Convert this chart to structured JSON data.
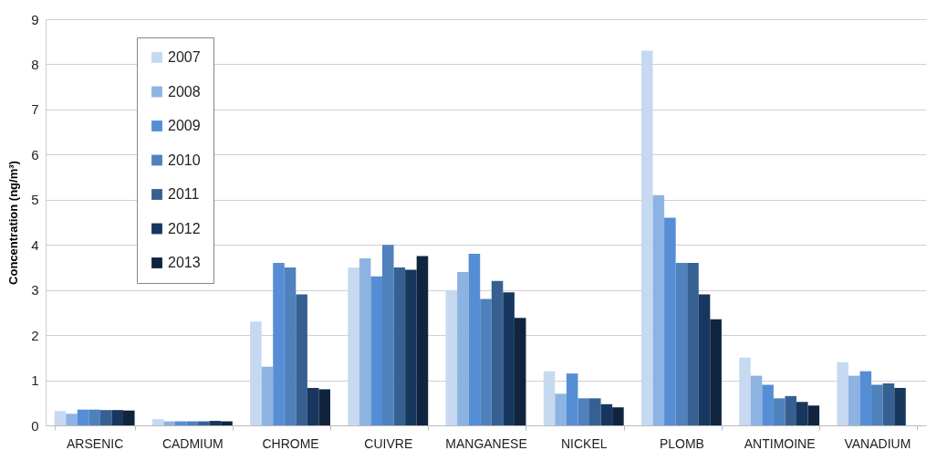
{
  "chart_data": {
    "type": "bar",
    "ylabel": "Concentration (ng/m³)",
    "categories": [
      "ARSENIC",
      "CADMIUM",
      "CHROME",
      "CUIVRE",
      "MANGANESE",
      "NICKEL",
      "PLOMB",
      "ANTIMOINE",
      "VANADIUM"
    ],
    "series": [
      {
        "name": "2007",
        "color": "#c6d9f1",
        "values": [
          0.32,
          0.14,
          2.3,
          3.5,
          3.0,
          1.2,
          8.3,
          1.5,
          1.4
        ]
      },
      {
        "name": "2008",
        "color": "#8db3e2",
        "values": [
          0.26,
          0.09,
          1.3,
          3.7,
          3.4,
          0.7,
          5.1,
          1.1,
          1.1
        ]
      },
      {
        "name": "2009",
        "color": "#558ed5",
        "values": [
          0.35,
          0.09,
          3.6,
          3.3,
          3.8,
          1.15,
          4.6,
          0.9,
          1.2
        ]
      },
      {
        "name": "2010",
        "color": "#4f81bd",
        "values": [
          0.35,
          0.09,
          3.5,
          4.0,
          2.8,
          0.6,
          3.6,
          0.6,
          0.9
        ]
      },
      {
        "name": "2011",
        "color": "#376092",
        "values": [
          0.34,
          0.09,
          2.9,
          3.5,
          3.2,
          0.6,
          3.6,
          0.65,
          0.93
        ]
      },
      {
        "name": "2012",
        "color": "#17375e",
        "values": [
          0.34,
          0.1,
          0.83,
          3.45,
          2.95,
          0.47,
          2.9,
          0.52,
          0.83
        ]
      },
      {
        "name": "2013",
        "color": "#10243f",
        "values": [
          0.33,
          0.09,
          0.8,
          3.75,
          2.38,
          0.4,
          2.35,
          0.44,
          null
        ]
      }
    ],
    "ylim": [
      0,
      9
    ],
    "yticks": [
      0,
      1,
      2,
      3,
      4,
      5,
      6,
      7,
      8,
      9
    ],
    "grid": "y",
    "legend": "top left"
  }
}
